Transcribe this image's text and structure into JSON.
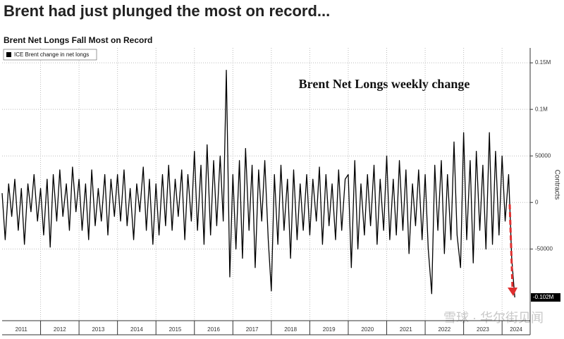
{
  "chart_data": {
    "type": "line",
    "title": "Brent had just plunged the most on record...",
    "subtitle": "Brent Net Longs Fall Most on Record",
    "annotation": "Brent Net Longs weekly change",
    "y_label": "Contracts",
    "watermark": "雪球 · 华尔街见闻",
    "legend": "top-left",
    "grid": true,
    "xlim": [
      2011,
      2024.73
    ],
    "xticks": [
      2011,
      2012,
      2013,
      2014,
      2015,
      2016,
      2017,
      2018,
      2019,
      2020,
      2021,
      2022,
      2023,
      2024
    ],
    "ylim": [
      -127000,
      166000
    ],
    "yticks": [
      {
        "value": 150000,
        "label": "0.15M"
      },
      {
        "value": 100000,
        "label": "0.1M"
      },
      50000,
      0,
      -50000
    ],
    "last_value": {
      "value": -102000,
      "label": "-0.102M"
    },
    "series": [
      {
        "name": "ICE Brent change in net longs",
        "color": "#000000",
        "x": [
          2011.0,
          2011.08,
          2011.17,
          2011.25,
          2011.33,
          2011.42,
          2011.5,
          2011.58,
          2011.67,
          2011.75,
          2011.83,
          2011.92,
          2012.0,
          2012.08,
          2012.17,
          2012.25,
          2012.33,
          2012.42,
          2012.5,
          2012.58,
          2012.67,
          2012.75,
          2012.83,
          2012.92,
          2013.0,
          2013.08,
          2013.17,
          2013.25,
          2013.33,
          2013.42,
          2013.5,
          2013.58,
          2013.67,
          2013.75,
          2013.83,
          2013.92,
          2014.0,
          2014.08,
          2014.17,
          2014.25,
          2014.33,
          2014.42,
          2014.5,
          2014.58,
          2014.67,
          2014.75,
          2014.83,
          2014.92,
          2015.0,
          2015.08,
          2015.17,
          2015.25,
          2015.33,
          2015.42,
          2015.5,
          2015.58,
          2015.67,
          2015.75,
          2015.83,
          2015.92,
          2016.0,
          2016.08,
          2016.17,
          2016.25,
          2016.33,
          2016.42,
          2016.5,
          2016.58,
          2016.67,
          2016.75,
          2016.83,
          2016.92,
          2017.0,
          2017.08,
          2017.17,
          2017.25,
          2017.33,
          2017.42,
          2017.5,
          2017.58,
          2017.67,
          2017.75,
          2017.83,
          2017.92,
          2018.0,
          2018.08,
          2018.17,
          2018.25,
          2018.33,
          2018.42,
          2018.5,
          2018.58,
          2018.67,
          2018.75,
          2018.83,
          2018.92,
          2019.0,
          2019.08,
          2019.17,
          2019.25,
          2019.33,
          2019.42,
          2019.5,
          2019.58,
          2019.67,
          2019.75,
          2019.83,
          2019.92,
          2020.0,
          2020.08,
          2020.17,
          2020.25,
          2020.33,
          2020.42,
          2020.5,
          2020.58,
          2020.67,
          2020.75,
          2020.83,
          2020.92,
          2021.0,
          2021.08,
          2021.17,
          2021.25,
          2021.33,
          2021.42,
          2021.5,
          2021.58,
          2021.67,
          2021.75,
          2021.83,
          2021.92,
          2022.0,
          2022.08,
          2022.17,
          2022.25,
          2022.33,
          2022.42,
          2022.5,
          2022.58,
          2022.67,
          2022.75,
          2022.83,
          2022.92,
          2023.0,
          2023.08,
          2023.17,
          2023.25,
          2023.33,
          2023.42,
          2023.5,
          2023.58,
          2023.67,
          2023.75,
          2023.83,
          2023.92,
          2024.0,
          2024.08,
          2024.17,
          2024.25,
          2024.33
        ],
        "values": [
          10000,
          -40000,
          20000,
          -15000,
          25000,
          -30000,
          15000,
          -45000,
          20000,
          -10000,
          30000,
          -20000,
          15000,
          -35000,
          25000,
          -48000,
          30000,
          -20000,
          35000,
          -15000,
          20000,
          -30000,
          38000,
          -10000,
          25000,
          -30000,
          20000,
          -40000,
          35000,
          -25000,
          15000,
          -20000,
          30000,
          -35000,
          25000,
          -15000,
          30000,
          -20000,
          35000,
          -25000,
          15000,
          -40000,
          20000,
          -10000,
          38000,
          -30000,
          25000,
          -45000,
          20000,
          -35000,
          30000,
          -25000,
          40000,
          -30000,
          25000,
          -15000,
          35000,
          -40000,
          30000,
          -20000,
          55000,
          -30000,
          40000,
          -45000,
          62000,
          -35000,
          45000,
          -25000,
          50000,
          -20000,
          142000,
          -80000,
          30000,
          -50000,
          45000,
          -60000,
          58000,
          -30000,
          40000,
          -70000,
          35000,
          -20000,
          45000,
          -40000,
          -95000,
          30000,
          -45000,
          40000,
          -30000,
          25000,
          -60000,
          35000,
          -40000,
          20000,
          -30000,
          30000,
          -35000,
          25000,
          -20000,
          38000,
          -45000,
          30000,
          -25000,
          20000,
          -40000,
          35000,
          -30000,
          25000,
          30000,
          -70000,
          45000,
          -50000,
          20000,
          -35000,
          30000,
          -25000,
          40000,
          -45000,
          25000,
          -30000,
          50000,
          -40000,
          25000,
          -35000,
          45000,
          -30000,
          35000,
          -55000,
          20000,
          -25000,
          35000,
          -40000,
          30000,
          -50000,
          -98000,
          40000,
          -30000,
          45000,
          -55000,
          30000,
          -40000,
          65000,
          -35000,
          -70000,
          75000,
          -40000,
          45000,
          -65000,
          55000,
          -30000,
          40000,
          -50000,
          75000,
          -45000,
          55000,
          -35000,
          50000,
          -20000,
          30000,
          -60000,
          -102000
        ]
      }
    ]
  }
}
